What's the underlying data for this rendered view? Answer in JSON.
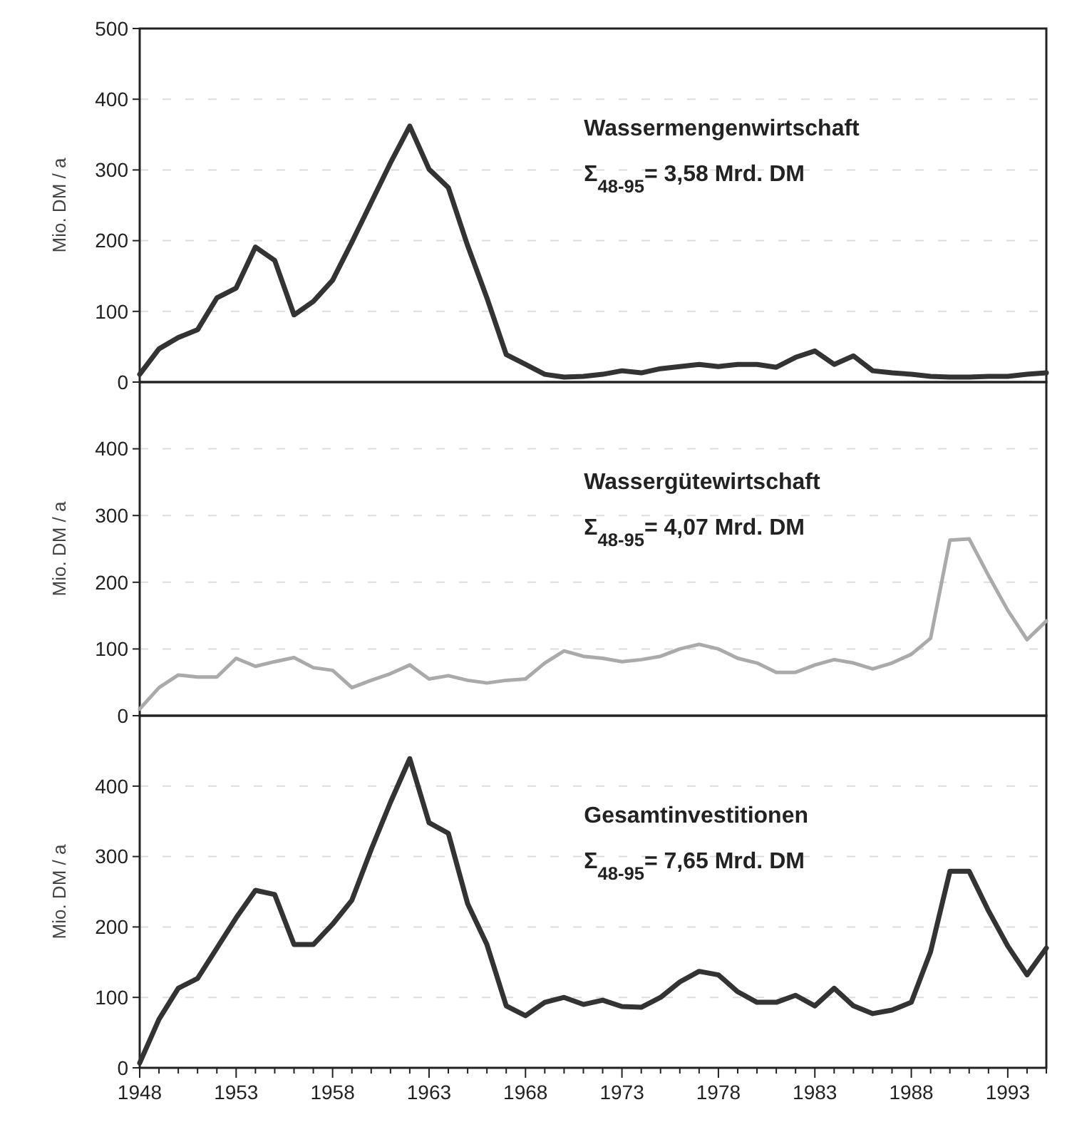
{
  "chart_data": [
    {
      "type": "line",
      "ylabel": "Mio. DM / a",
      "annotations": [
        "Wassermengenwirtschaft",
        "Σ$_{48-95}$= 3,58 Mrd. DM"
      ],
      "x": [
        1948,
        1949,
        1950,
        1951,
        1952,
        1953,
        1954,
        1955,
        1956,
        1957,
        1958,
        1959,
        1960,
        1961,
        1962,
        1963,
        1964,
        1965,
        1966,
        1967,
        1968,
        1969,
        1970,
        1971,
        1972,
        1973,
        1974,
        1975,
        1976,
        1977,
        1978,
        1979,
        1980,
        1981,
        1982,
        1983,
        1984,
        1985,
        1986,
        1987,
        1988,
        1989,
        1990,
        1991,
        1992,
        1993,
        1994,
        1995
      ],
      "xlim": [
        1948,
        1995
      ],
      "ylim": [
        0,
        500
      ],
      "yticks": [
        0,
        100,
        200,
        300,
        400,
        500
      ],
      "grid": "y",
      "tick_labels": "y",
      "series": [
        {
          "color": "#333333",
          "values": [
            11,
            47,
            63,
            74,
            119,
            133,
            191,
            172,
            95,
            114,
            144,
            198,
            254,
            310,
            362,
            301,
            275,
            193,
            119,
            39,
            25,
            11,
            7,
            8,
            11,
            16,
            13,
            19,
            22,
            25,
            22,
            25,
            25,
            21,
            35,
            44,
            25,
            37,
            16,
            13,
            11,
            8,
            7,
            7,
            8,
            8,
            11,
            13
          ]
        }
      ]
    },
    {
      "type": "line",
      "ylabel": "Mio. DM / a",
      "annotations": [
        "Wassergütewirtschaft",
        "Σ$_{48-95}$= 4,07 Mrd. DM"
      ],
      "x": [
        1948,
        1949,
        1950,
        1951,
        1952,
        1953,
        1954,
        1955,
        1956,
        1957,
        1958,
        1959,
        1960,
        1961,
        1962,
        1963,
        1964,
        1965,
        1966,
        1967,
        1968,
        1969,
        1970,
        1971,
        1972,
        1973,
        1974,
        1975,
        1976,
        1977,
        1978,
        1979,
        1980,
        1981,
        1982,
        1983,
        1984,
        1985,
        1986,
        1987,
        1988,
        1989,
        1990,
        1991,
        1992,
        1993,
        1994,
        1995
      ],
      "xlim": [
        1948,
        1995
      ],
      "ylim": [
        0,
        500
      ],
      "yticks": [
        0,
        100,
        200,
        300,
        400
      ],
      "grid": "y",
      "tick_labels": "y",
      "series": [
        {
          "color": "#aaaaaa",
          "values": [
            10,
            42,
            61,
            58,
            58,
            86,
            74,
            81,
            87,
            72,
            68,
            42,
            53,
            63,
            76,
            55,
            60,
            53,
            49,
            53,
            55,
            79,
            97,
            89,
            86,
            81,
            84,
            89,
            100,
            107,
            100,
            86,
            79,
            65,
            65,
            76,
            84,
            79,
            70,
            79,
            92,
            116,
            263,
            265,
            210,
            158,
            114,
            142
          ]
        }
      ]
    },
    {
      "type": "line",
      "ylabel": "Mio. DM / a",
      "annotations": [
        "Gesamtinvestitionen",
        "Σ$_{48-95}$= 7,65 Mrd. DM"
      ],
      "x": [
        1948,
        1949,
        1950,
        1951,
        1952,
        1953,
        1954,
        1955,
        1956,
        1957,
        1958,
        1959,
        1960,
        1961,
        1962,
        1963,
        1964,
        1965,
        1966,
        1967,
        1968,
        1969,
        1970,
        1971,
        1972,
        1973,
        1974,
        1975,
        1976,
        1977,
        1978,
        1979,
        1980,
        1981,
        1982,
        1983,
        1984,
        1985,
        1986,
        1987,
        1988,
        1989,
        1990,
        1991,
        1992,
        1993,
        1994,
        1995
      ],
      "xlim": [
        1948,
        1995
      ],
      "ylim": [
        0,
        500
      ],
      "yticks": [
        0,
        100,
        200,
        300,
        400
      ],
      "grid": "y",
      "xticks": [
        1948,
        {
          "value": 1949,
          "label": null
        },
        {
          "value": 1950,
          "label": null
        },
        {
          "value": 1951,
          "label": null
        },
        {
          "value": 1952,
          "label": null
        },
        1953,
        {
          "value": 1954,
          "label": null
        },
        {
          "value": 1955,
          "label": null
        },
        {
          "value": 1956,
          "label": null
        },
        {
          "value": 1957,
          "label": null
        },
        1958,
        {
          "value": 1959,
          "label": null
        },
        {
          "value": 1960,
          "label": null
        },
        {
          "value": 1961,
          "label": null
        },
        {
          "value": 1962,
          "label": null
        },
        1963,
        {
          "value": 1964,
          "label": null
        },
        {
          "value": 1965,
          "label": null
        },
        {
          "value": 1966,
          "label": null
        },
        {
          "value": 1967,
          "label": null
        },
        1968,
        {
          "value": 1969,
          "label": null
        },
        {
          "value": 1970,
          "label": null
        },
        {
          "value": 1971,
          "label": null
        },
        {
          "value": 1972,
          "label": null
        },
        1973,
        {
          "value": 1974,
          "label": null
        },
        {
          "value": 1975,
          "label": null
        },
        {
          "value": 1976,
          "label": null
        },
        {
          "value": 1977,
          "label": null
        },
        1978,
        {
          "value": 1979,
          "label": null
        },
        {
          "value": 1980,
          "label": null
        },
        {
          "value": 1981,
          "label": null
        },
        {
          "value": 1982,
          "label": null
        },
        1983,
        {
          "value": 1984,
          "label": null
        },
        {
          "value": 1985,
          "label": null
        },
        {
          "value": 1986,
          "label": null
        },
        {
          "value": 1987,
          "label": null
        },
        1988,
        {
          "value": 1989,
          "label": null
        },
        {
          "value": 1990,
          "label": null
        },
        {
          "value": 1991,
          "label": null
        },
        {
          "value": 1992,
          "label": null
        },
        1993,
        {
          "value": 1994,
          "label": null
        },
        {
          "value": 1995,
          "label": null
        }
      ],
      "series": [
        {
          "color": "#333333",
          "values": [
            7,
            69,
            113,
            127,
            170,
            213,
            252,
            246,
            175,
            175,
            204,
            238,
            310,
            377,
            439,
            348,
            333,
            233,
            175,
            88,
            74,
            93,
            100,
            90,
            96,
            87,
            86,
            100,
            122,
            137,
            132,
            108,
            93,
            93,
            103,
            88,
            113,
            88,
            77,
            82,
            93,
            165,
            279,
            279,
            223,
            173,
            132,
            170
          ]
        }
      ]
    }
  ]
}
